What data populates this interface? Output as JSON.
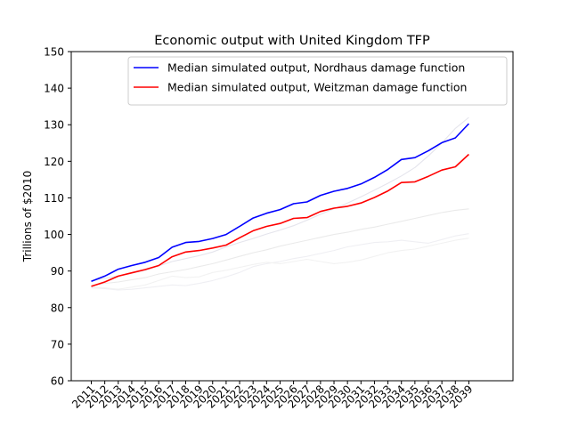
{
  "chart_data": {
    "type": "line",
    "title": "Economic output with United Kingdom TFP",
    "xlabel": "",
    "ylabel": "Trillions of $2010",
    "ylim": [
      60,
      150
    ],
    "yticks": [
      60,
      70,
      80,
      90,
      100,
      110,
      120,
      130,
      140,
      150
    ],
    "grid": false,
    "legend_position": "top-right",
    "categories": [
      "2011",
      "2012",
      "2013",
      "2014",
      "2015",
      "2016",
      "2017",
      "2018",
      "2019",
      "2020",
      "2021",
      "2022",
      "2023",
      "2024",
      "2025",
      "2026",
      "2027",
      "2028",
      "2029",
      "2030",
      "2031",
      "2032",
      "2033",
      "2034",
      "2035",
      "2036",
      "2037",
      "2038",
      "2039"
    ],
    "series": [
      {
        "name": "Median simulated output, Nordhaus damage function",
        "color": "#0000ff",
        "in_legend": true,
        "values": [
          87.2,
          88.6,
          90.5,
          91.5,
          92.4,
          93.7,
          96.5,
          97.8,
          98.1,
          98.9,
          100.0,
          102.2,
          104.5,
          105.8,
          106.8,
          108.4,
          108.9,
          110.7,
          111.8,
          112.6,
          113.8,
          115.6,
          117.8,
          120.5,
          121.0,
          122.9,
          125.1,
          126.4,
          130.3
        ]
      },
      {
        "name": "Median simulated output, Weitzman damage function",
        "color": "#ff0000",
        "in_legend": true,
        "values": [
          85.8,
          87.0,
          88.6,
          89.5,
          90.4,
          91.5,
          93.9,
          95.2,
          95.6,
          96.3,
          97.1,
          99.1,
          101.0,
          102.2,
          103.0,
          104.4,
          104.6,
          106.3,
          107.2,
          107.7,
          108.6,
          110.1,
          111.9,
          114.2,
          114.4,
          115.9,
          117.6,
          118.5,
          121.9
        ]
      },
      {
        "color": "#e4e4ec",
        "in_legend": false,
        "values": [
          87.4,
          88.0,
          88.6,
          89.4,
          90.2,
          91.4,
          92.6,
          93.4,
          94.2,
          95.2,
          96.6,
          97.8,
          98.9,
          100.1,
          101.2,
          102.4,
          103.9,
          105.5,
          107.0,
          108.6,
          110.3,
          112.1,
          114.0,
          116.0,
          118.3,
          121.5,
          125.0,
          129.0,
          132.0
        ]
      },
      {
        "color": "#eaeaea",
        "in_legend": false,
        "values": [
          86.0,
          86.6,
          87.0,
          87.6,
          88.2,
          89.2,
          89.8,
          90.4,
          91.2,
          92.0,
          93.0,
          94.0,
          95.0,
          95.8,
          96.8,
          97.6,
          98.4,
          99.2,
          100.0,
          100.6,
          101.4,
          102.0,
          102.8,
          103.6,
          104.4,
          105.2,
          106.0,
          106.6,
          107.0
        ]
      },
      {
        "color": "#efeff3",
        "in_legend": false,
        "values": [
          85.4,
          85.2,
          84.8,
          85.0,
          85.4,
          85.8,
          86.2,
          86.0,
          86.6,
          87.4,
          88.4,
          89.6,
          91.2,
          92.0,
          92.6,
          93.4,
          94.0,
          94.8,
          95.6,
          96.6,
          97.2,
          97.8,
          98.0,
          98.4,
          98.0,
          97.6,
          98.6,
          99.6,
          100.2
        ]
      },
      {
        "color": "#f2f2f2",
        "in_legend": false,
        "values": [
          85.6,
          85.4,
          85.0,
          85.6,
          86.2,
          87.4,
          88.6,
          88.2,
          88.4,
          89.6,
          90.2,
          91.0,
          91.8,
          92.4,
          92.0,
          92.6,
          93.2,
          92.6,
          92.0,
          92.4,
          93.0,
          94.0,
          95.0,
          95.6,
          96.0,
          96.8,
          97.6,
          98.4,
          99.0
        ]
      }
    ]
  }
}
